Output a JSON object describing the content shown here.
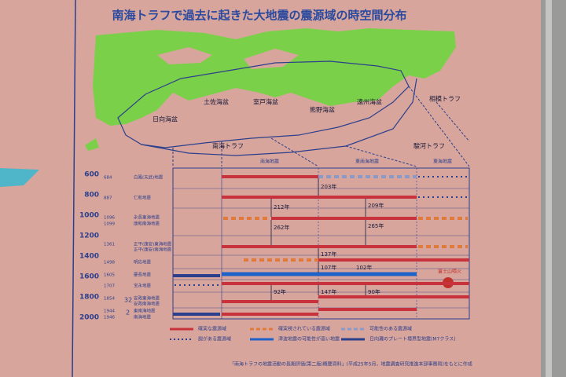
{
  "title": "南海トラフで過去に起きた大地震の震源域の時空間分布",
  "map": {
    "labels": [
      "日向海盆",
      "土佐海盆",
      "室戸海盆",
      "熊野海盆",
      "遠州海盆",
      "南海トラフ",
      "駿河トラフ",
      "相模トラフ"
    ]
  },
  "timeline": {
    "columns": [
      "南海地震",
      "東南海地震",
      "東海地震"
    ],
    "years": [
      600,
      800,
      1000,
      1200,
      1400,
      1600,
      1800,
      2000
    ],
    "events": [
      {
        "year": 684,
        "name": "白鳳(天武)地震"
      },
      {
        "year": 887,
        "name": "仁和地震"
      },
      {
        "year": 1096,
        "name": "永長東海地震"
      },
      {
        "year": 1099,
        "name": "康和南海地震"
      },
      {
        "year": 1361,
        "name": "正平(康安)東海地震"
      },
      {
        "name": "正平(康安)南海地震"
      },
      {
        "year": 1498,
        "name": "明応地震"
      },
      {
        "year": 1605,
        "name": "慶長地震"
      },
      {
        "year": 1707,
        "name": "宝永地震"
      },
      {
        "year": 1854,
        "name": "安政東海地震"
      },
      {
        "name": "安政南海地震"
      },
      {
        "year": 1944,
        "name": "東南海地震"
      },
      {
        "year": 1946,
        "name": "南海地震"
      }
    ],
    "gaps": [
      "32",
      "2"
    ],
    "intervals": [
      "203年",
      "212年",
      "209年",
      "262年",
      "265年",
      "137年",
      "107年",
      "102年",
      "92年",
      "147年",
      "90年"
    ],
    "fuji": "富士山噴火"
  },
  "legend": [
    "確実な震源域",
    "確実視されている震源域",
    "可能性のある震源域",
    "説がある震源域",
    "津波地震の可能性が高い地震",
    "日向灘のプレート境界型地震(M7クラス)"
  ],
  "source": "「南海トラフの地震活動の長期評価(第二版)概要資料」(平成25年5月，地震調査研究推進本部事務局)をもとに作成"
}
